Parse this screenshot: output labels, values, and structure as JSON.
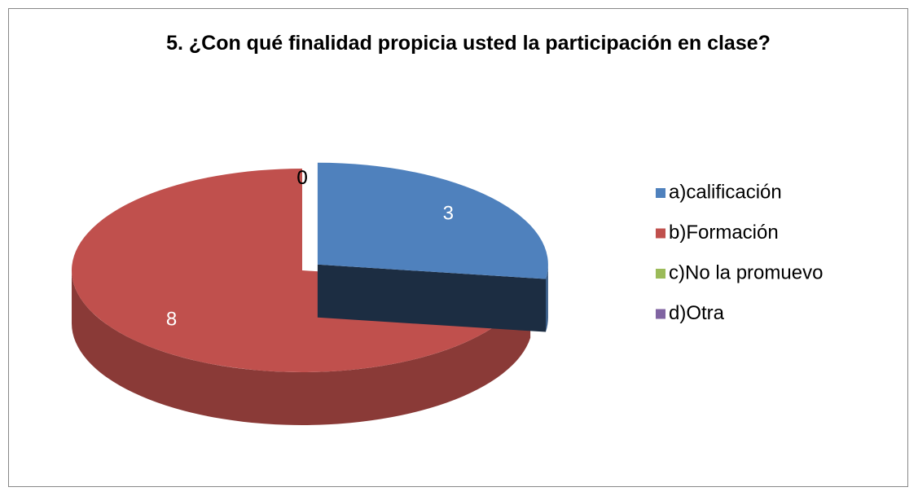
{
  "chart_data": {
    "type": "pie",
    "title": "5.  ¿Con qué finalidad propicia usted la participación en clase?",
    "categories": [
      "a)calificación",
      "b)Formación",
      "c)No la promuevo",
      "d)Otra"
    ],
    "values": [
      3,
      8,
      0,
      0
    ],
    "colors": [
      "#4f81bd",
      "#c0504d",
      "#9bbb59",
      "#8064a2"
    ],
    "legend": "right"
  }
}
